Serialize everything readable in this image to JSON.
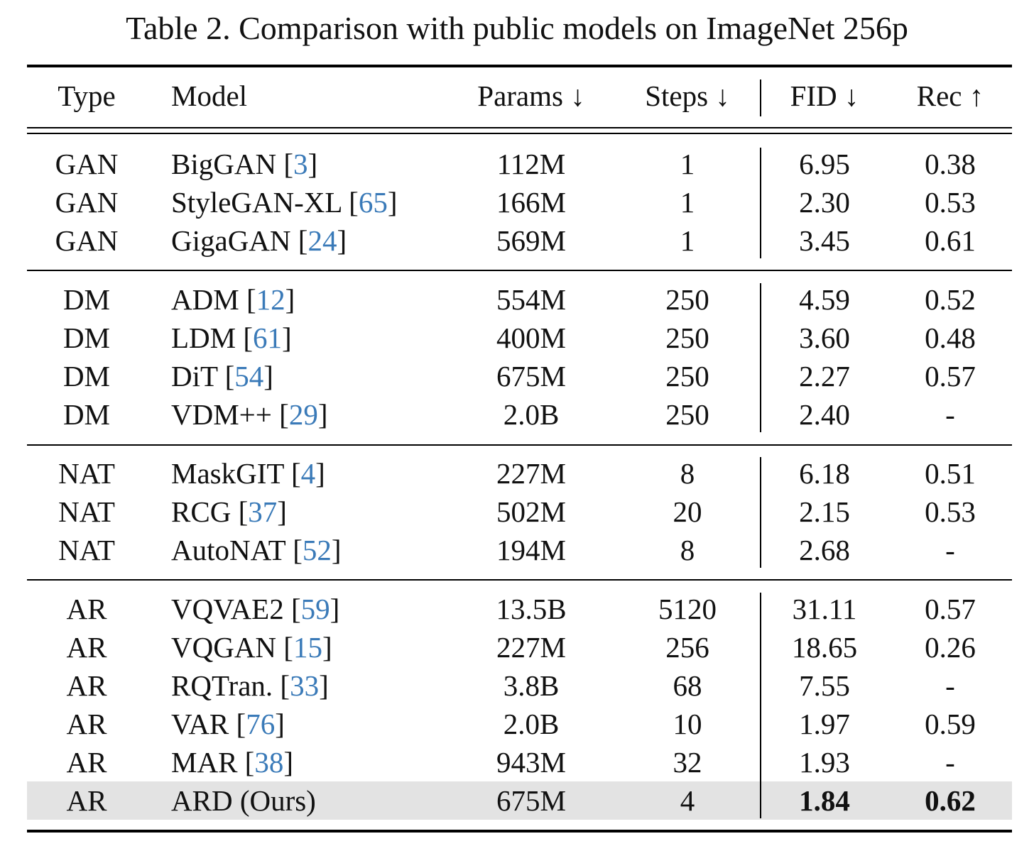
{
  "caption": "Table 2. Comparison with public models on ImageNet 256p",
  "columns": {
    "type": "Type",
    "model": "Model",
    "params": "Params ↓",
    "steps": "Steps ↓",
    "fid": "FID ↓",
    "rec": "Rec ↑"
  },
  "rows": [
    {
      "type": "GAN",
      "model": "BigGAN",
      "ref": "3",
      "params": "112M",
      "steps": "1",
      "fid": "6.95",
      "rec": "0.38"
    },
    {
      "type": "GAN",
      "model": "StyleGAN-XL",
      "ref": "65",
      "params": "166M",
      "steps": "1",
      "fid": "2.30",
      "rec": "0.53"
    },
    {
      "type": "GAN",
      "model": "GigaGAN",
      "ref": "24",
      "params": "569M",
      "steps": "1",
      "fid": "3.45",
      "rec": "0.61"
    },
    {
      "type": "DM",
      "model": "ADM",
      "ref": "12",
      "params": "554M",
      "steps": "250",
      "fid": "4.59",
      "rec": "0.52"
    },
    {
      "type": "DM",
      "model": "LDM",
      "ref": "61",
      "params": "400M",
      "steps": "250",
      "fid": "3.60",
      "rec": "0.48"
    },
    {
      "type": "DM",
      "model": "DiT",
      "ref": "54",
      "params": "675M",
      "steps": "250",
      "fid": "2.27",
      "rec": "0.57"
    },
    {
      "type": "DM",
      "model": "VDM++",
      "ref": "29",
      "params": "2.0B",
      "steps": "250",
      "fid": "2.40",
      "rec": "-"
    },
    {
      "type": "NAT",
      "model": "MaskGIT",
      "ref": "4",
      "params": "227M",
      "steps": "8",
      "fid": "6.18",
      "rec": "0.51"
    },
    {
      "type": "NAT",
      "model": "RCG",
      "ref": "37",
      "params": "502M",
      "steps": "20",
      "fid": "2.15",
      "rec": "0.53"
    },
    {
      "type": "NAT",
      "model": "AutoNAT",
      "ref": "52",
      "params": "194M",
      "steps": "8",
      "fid": "2.68",
      "rec": "-"
    },
    {
      "type": "AR",
      "model": "VQVAE2",
      "ref": "59",
      "params": "13.5B",
      "steps": "5120",
      "fid": "31.11",
      "rec": "0.57"
    },
    {
      "type": "AR",
      "model": "VQGAN",
      "ref": "15",
      "params": "227M",
      "steps": "256",
      "fid": "18.65",
      "rec": "0.26"
    },
    {
      "type": "AR",
      "model": "RQTran.",
      "ref": "33",
      "params": "3.8B",
      "steps": "68",
      "fid": "7.55",
      "rec": "-"
    },
    {
      "type": "AR",
      "model": "VAR",
      "ref": "76",
      "params": "2.0B",
      "steps": "10",
      "fid": "1.97",
      "rec": "0.59"
    },
    {
      "type": "AR",
      "model": "MAR",
      "ref": "38",
      "params": "943M",
      "steps": "32",
      "fid": "1.93",
      "rec": "-"
    },
    {
      "type": "AR",
      "model": "ARD (Ours)",
      "ref": "",
      "params": "675M",
      "steps": "4",
      "fid": "1.84",
      "rec": "0.62",
      "highlight": true
    }
  ]
}
